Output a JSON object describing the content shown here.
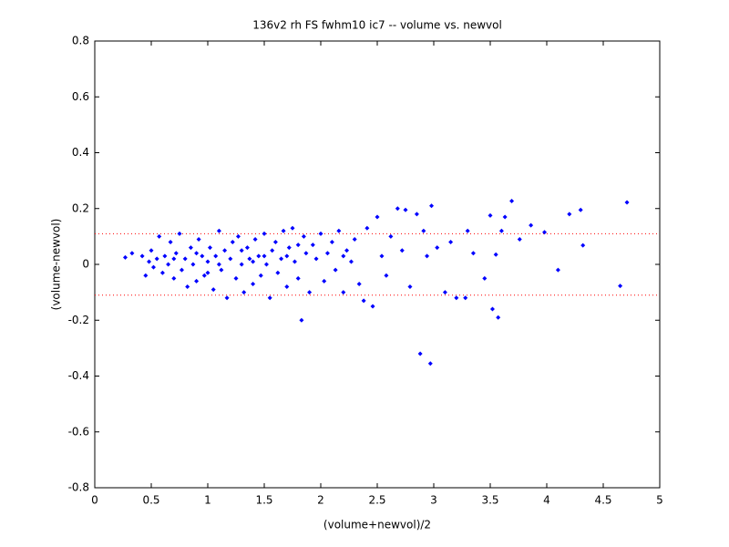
{
  "chart_data": {
    "type": "scatter",
    "title": "136v2 rh FS fwhm10 ic7 -- volume vs. newvol",
    "x_label": "(volume+newvol)/2",
    "y_label": "(volume-newvol)",
    "color": "#0000ff",
    "reference_lines": [
      0.11,
      -0.11
    ],
    "reference_color": "#ff0000",
    "xlim": [
      0,
      5
    ],
    "ylim": [
      -0.8,
      0.8
    ],
    "xticks": [
      0,
      0.5,
      1,
      1.5,
      2,
      2.5,
      3,
      3.5,
      4,
      4.5,
      5
    ],
    "yticks": [
      -0.8,
      -0.6,
      -0.4,
      -0.2,
      0,
      0.2,
      0.4,
      0.6,
      0.8
    ],
    "x": [
      0.27,
      0.33,
      0.42,
      0.45,
      0.48,
      0.5,
      0.52,
      0.55,
      0.57,
      0.6,
      0.62,
      0.65,
      0.67,
      0.7,
      0.72,
      0.75,
      0.77,
      0.8,
      0.82,
      0.85,
      0.87,
      0.9,
      0.92,
      0.95,
      0.97,
      1.0,
      1.02,
      1.05,
      1.07,
      1.1,
      1.12,
      1.15,
      1.17,
      1.2,
      1.22,
      1.25,
      1.27,
      1.3,
      1.32,
      1.35,
      1.37,
      1.4,
      1.42,
      1.45,
      1.47,
      1.5,
      1.52,
      1.55,
      1.57,
      1.6,
      1.62,
      1.65,
      1.67,
      1.7,
      1.72,
      1.75,
      1.77,
      1.8,
      1.83,
      1.85,
      1.87,
      1.9,
      1.93,
      1.96,
      2.0,
      2.03,
      2.06,
      2.1,
      2.13,
      2.16,
      2.2,
      2.23,
      2.27,
      2.3,
      2.34,
      2.38,
      2.41,
      2.46,
      2.5,
      2.54,
      2.58,
      2.62,
      2.68,
      2.72,
      2.75,
      2.79,
      2.85,
      2.88,
      2.91,
      2.94,
      2.97,
      2.98,
      3.03,
      3.1,
      3.15,
      3.2,
      3.28,
      3.3,
      3.35,
      3.45,
      3.5,
      3.52,
      3.55,
      3.57,
      3.6,
      3.63,
      3.69,
      3.76,
      3.86,
      3.98,
      4.1,
      4.2,
      4.3,
      4.32,
      4.65,
      4.71,
      0.9,
      1.1,
      1.3,
      1.5,
      1.7,
      0.7,
      1.4,
      1.8,
      2.2,
      1.0
    ],
    "y": [
      0.025,
      0.04,
      0.03,
      -0.04,
      0.01,
      0.05,
      -0.01,
      0.02,
      0.1,
      -0.03,
      0.03,
      0.0,
      0.08,
      -0.05,
      0.04,
      0.11,
      -0.02,
      0.02,
      -0.08,
      0.06,
      0.0,
      -0.06,
      0.09,
      0.03,
      -0.04,
      0.01,
      0.06,
      -0.09,
      0.03,
      0.12,
      -0.02,
      0.05,
      -0.12,
      0.02,
      0.08,
      -0.05,
      0.1,
      0.0,
      -0.1,
      0.06,
      0.02,
      -0.07,
      0.09,
      0.03,
      -0.04,
      0.11,
      0.0,
      -0.12,
      0.05,
      0.08,
      -0.03,
      0.02,
      0.12,
      -0.08,
      0.06,
      0.13,
      0.01,
      -0.05,
      -0.2,
      0.1,
      0.04,
      -0.1,
      0.07,
      0.02,
      0.11,
      -0.06,
      0.04,
      0.08,
      -0.02,
      0.12,
      -0.1,
      0.05,
      0.01,
      0.09,
      -0.07,
      -0.13,
      0.13,
      -0.15,
      0.17,
      0.03,
      -0.04,
      0.1,
      0.2,
      0.05,
      0.195,
      -0.08,
      0.18,
      -0.32,
      0.12,
      0.03,
      -0.355,
      0.21,
      0.06,
      -0.1,
      0.08,
      -0.12,
      -0.12,
      0.12,
      0.04,
      -0.05,
      0.175,
      -0.16,
      0.035,
      -0.19,
      0.12,
      0.17,
      0.227,
      0.09,
      0.14,
      0.115,
      -0.02,
      0.18,
      0.195,
      0.068,
      -0.077,
      0.222,
      0.04,
      0.0,
      0.05,
      0.03,
      0.03,
      0.02,
      0.01,
      0.07,
      0.03,
      -0.03
    ]
  }
}
